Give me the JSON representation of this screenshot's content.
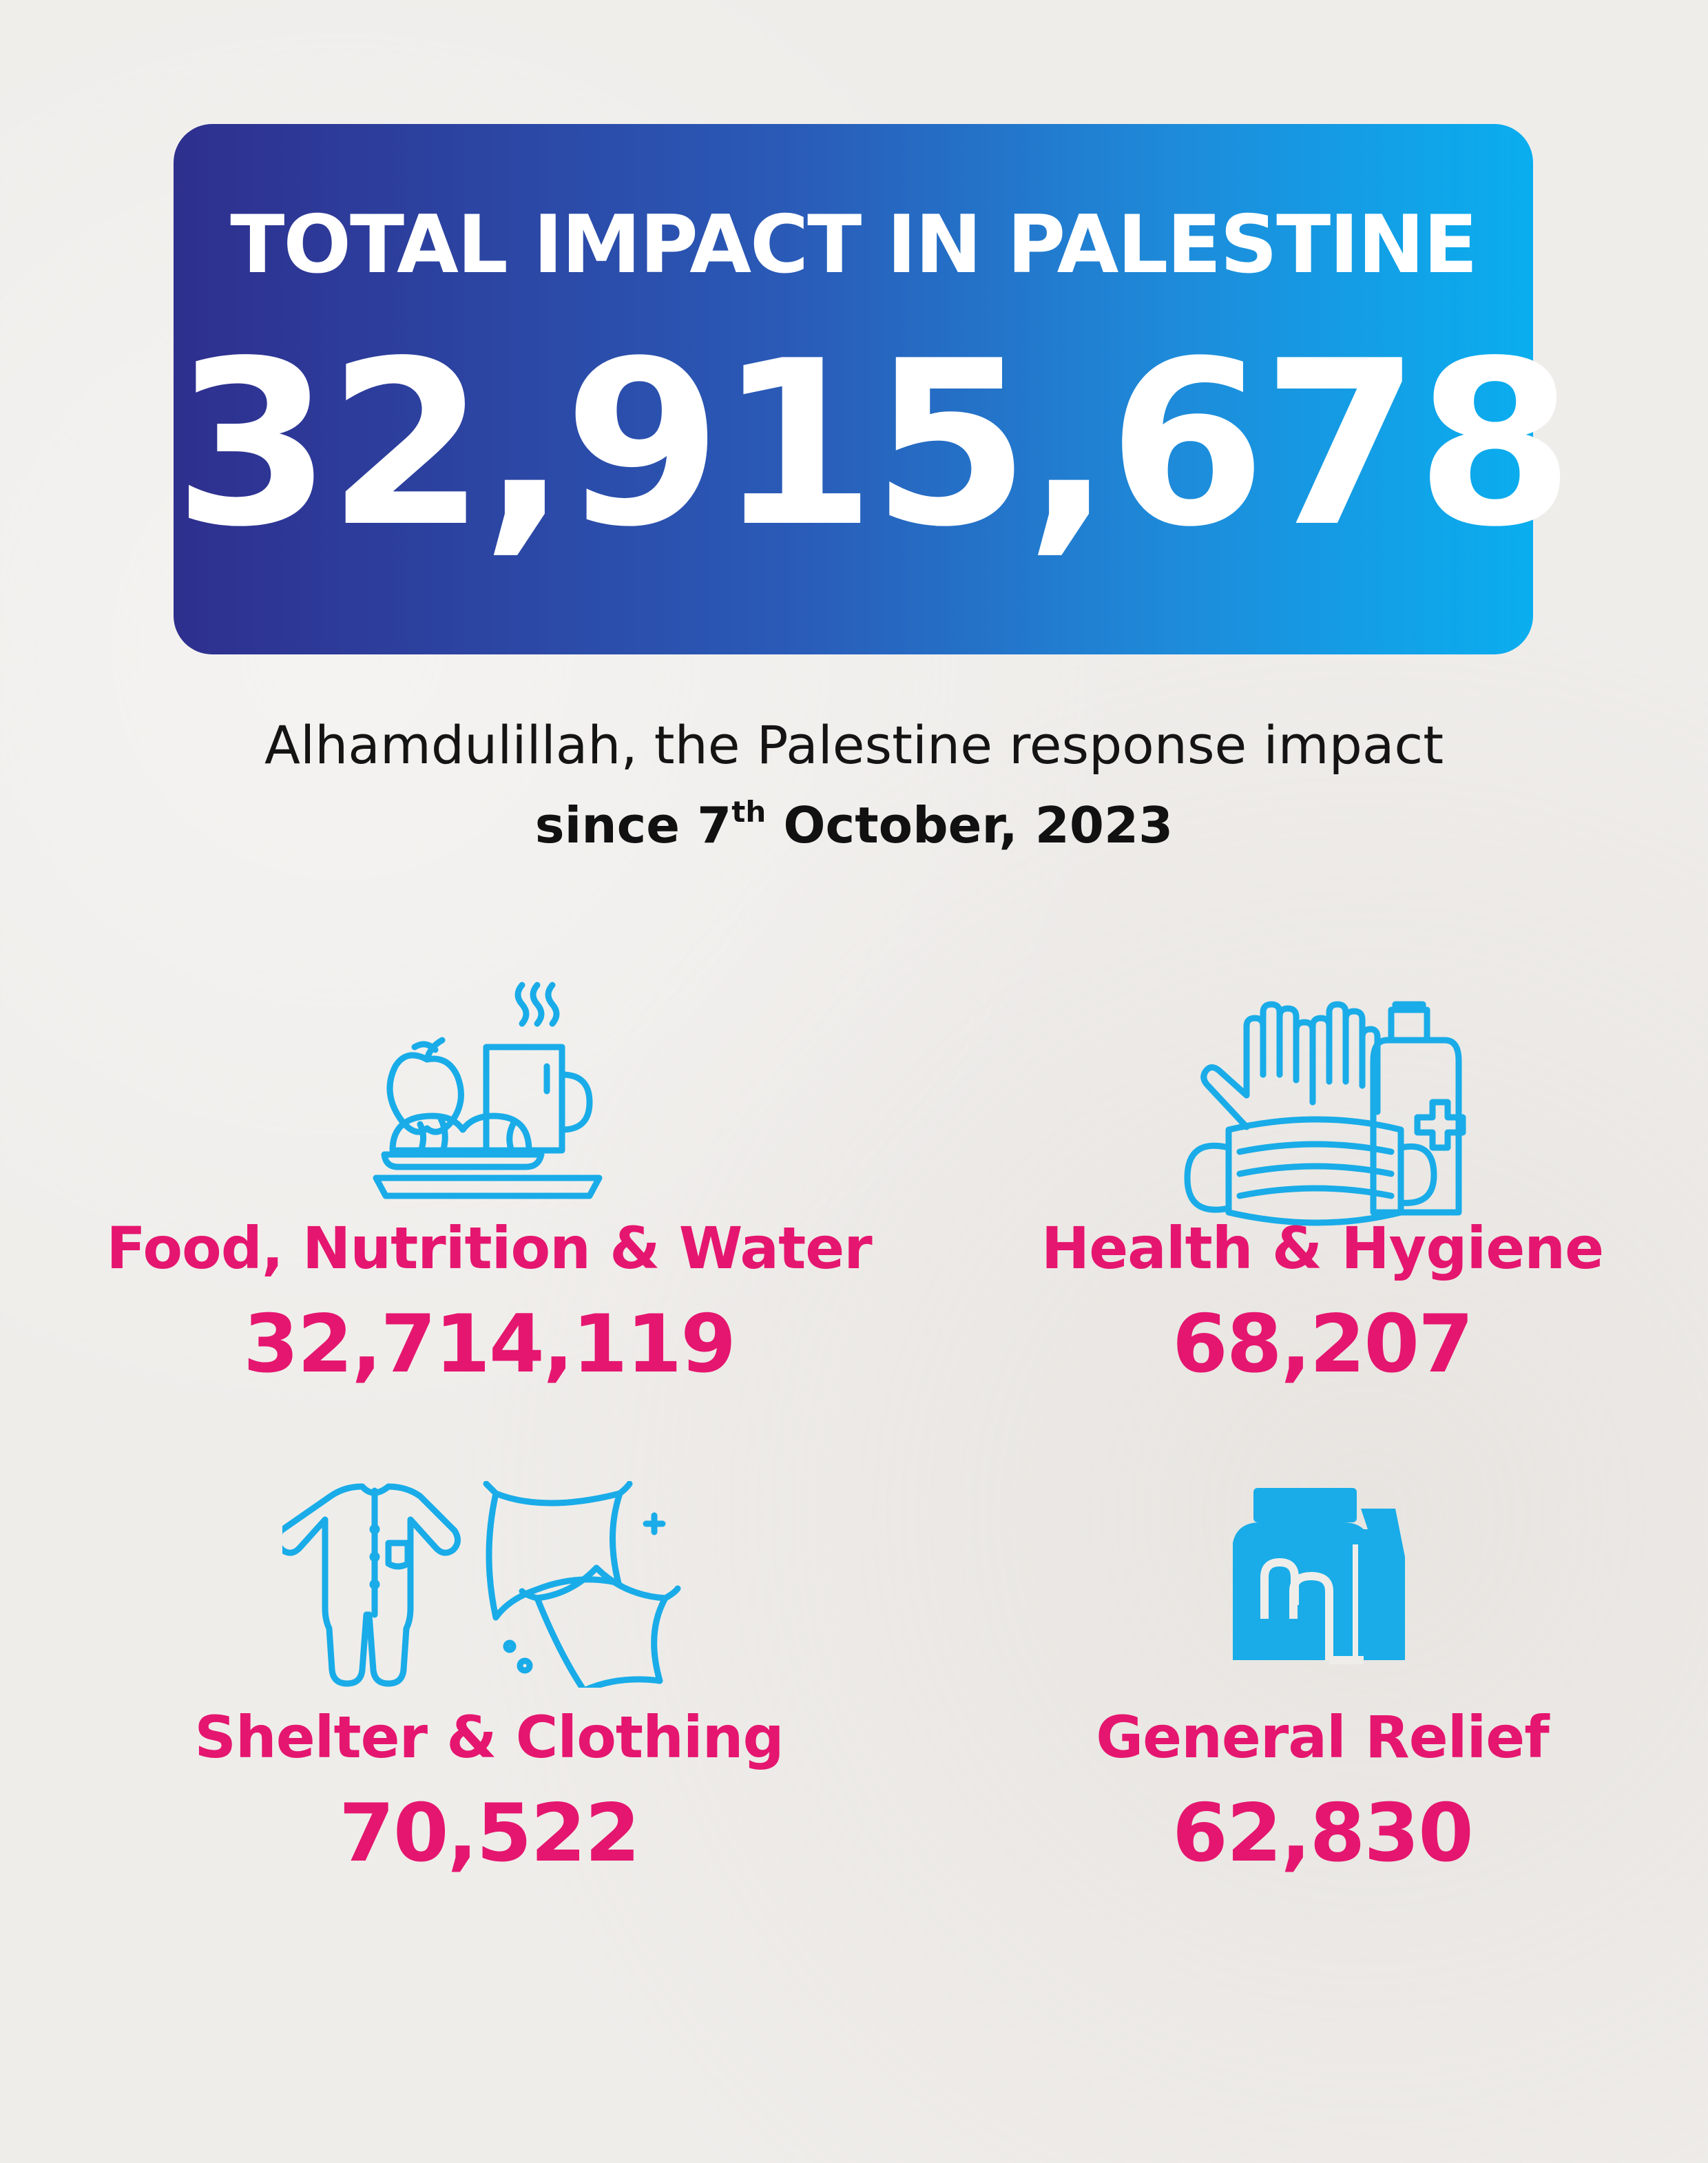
{
  "hero": {
    "title": "TOTAL IMPACT IN PALESTINE",
    "total": "32,915,678",
    "gradient_start": "#2e2f8e",
    "gradient_end": "#0aaeef"
  },
  "subtitle": {
    "line1": "Alhamdulillah, the Palestine response impact",
    "line2_prefix": "since 7",
    "line2_sup": "th",
    "line2_suffix": " October, 2023"
  },
  "colors": {
    "icon": "#19ace8",
    "accent": "#e5166f",
    "background": "#efedea"
  },
  "categories": [
    {
      "label": "Food, Nutrition & Water",
      "value": "32,714,119",
      "icon": "food-tray-mug-icon"
    },
    {
      "label": "Health & Hygiene",
      "value": "68,207",
      "icon": "gloves-mask-bottle-icon"
    },
    {
      "label": "Shelter & Clothing",
      "value": "70,522",
      "icon": "onesie-pillows-icon"
    },
    {
      "label": "General Relief",
      "value": "62,830",
      "icon": "relief-bags-icon"
    }
  ]
}
